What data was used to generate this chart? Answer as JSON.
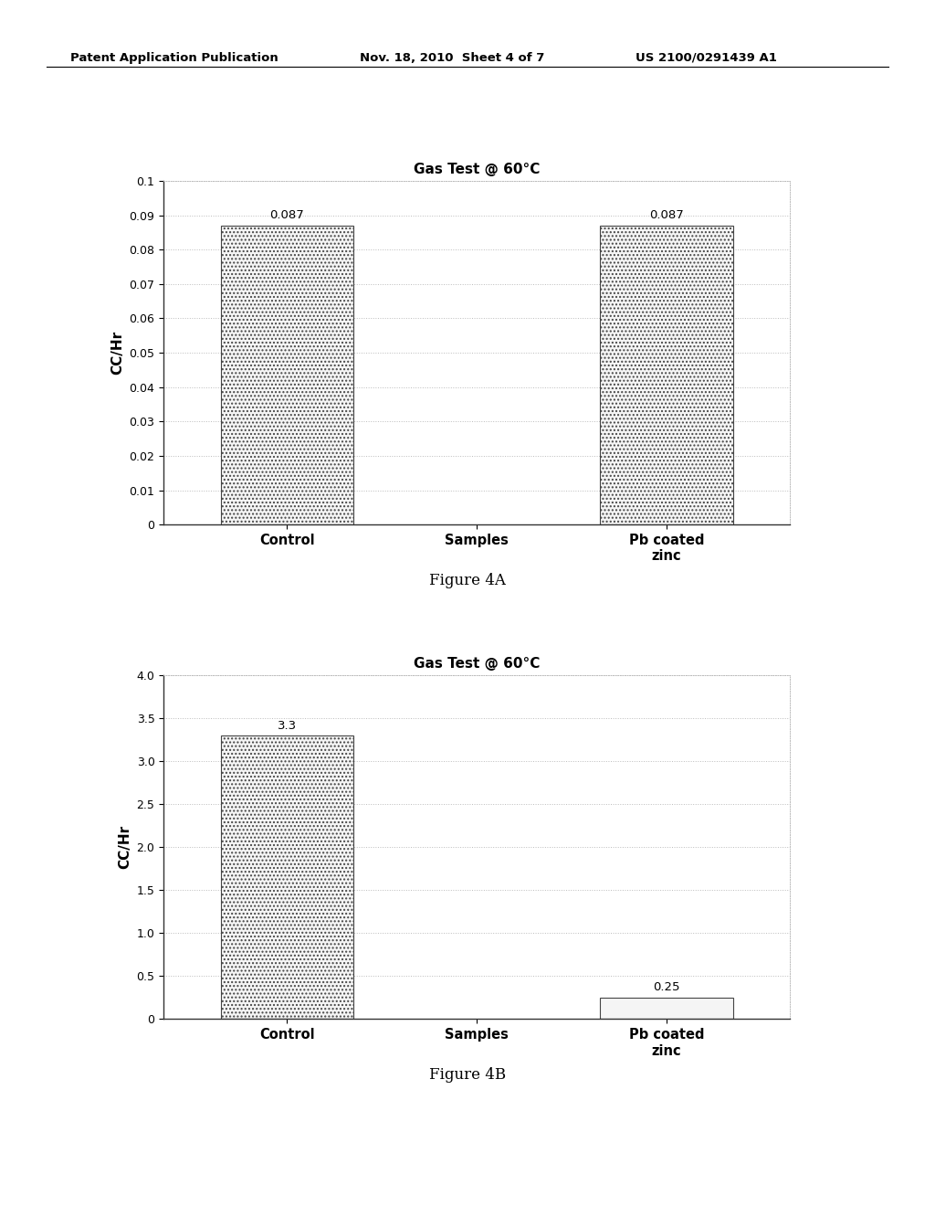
{
  "fig_width": 10.24,
  "fig_height": 13.2,
  "bg_color": "#ffffff",
  "header_left": "Patent Application Publication",
  "header_center": "Nov. 18, 2010  Sheet 4 of 7",
  "header_right": "US 2100/0291439 A1",
  "chart_a": {
    "title": "Gas Test @ 60°C",
    "ylabel": "CC/Hr",
    "categories": [
      "Control",
      "Samples",
      "Pb coated\nzinc"
    ],
    "bar_positions": [
      0,
      2
    ],
    "bar_values": [
      0.087,
      0.087
    ],
    "bar_labels": [
      "0.087",
      "0.087"
    ],
    "bar_hatches": [
      "....",
      "...."
    ],
    "ylim": [
      0,
      0.1
    ],
    "yticks": [
      0,
      0.01,
      0.02,
      0.03,
      0.04,
      0.05,
      0.06,
      0.07,
      0.08,
      0.09,
      0.1
    ],
    "ytick_labels": [
      "0",
      "0.01",
      "0.02",
      "0.03",
      "0.04",
      "0.05",
      "0.06",
      "0.07",
      "0.08",
      "0.09",
      "0.1"
    ],
    "figure_label": "Figure 4A",
    "bar_color": "#f5f5f5",
    "bar_edge_color": "#444444",
    "bar_width": 0.7,
    "grid_color": "#bbbbbb",
    "grid_style": ":"
  },
  "chart_b": {
    "title": "Gas Test @ 60°C",
    "ylabel": "CC/Hr",
    "categories": [
      "Control",
      "Samples",
      "Pb coated\nzinc"
    ],
    "bar_positions": [
      0,
      2
    ],
    "bar_values": [
      3.3,
      0.25
    ],
    "bar_labels": [
      "3.3",
      "0.25"
    ],
    "bar_hatches": [
      "....",
      ""
    ],
    "ylim": [
      0,
      4.0
    ],
    "yticks": [
      0,
      0.5,
      1.0,
      1.5,
      2.0,
      2.5,
      3.0,
      3.5,
      4.0
    ],
    "ytick_labels": [
      "0",
      "0.5",
      "1.0",
      "1.5",
      "2.0",
      "2.5",
      "3.0",
      "3.5",
      "4.0"
    ],
    "figure_label": "Figure 4B",
    "bar_color": "#f5f5f5",
    "bar_edge_color": "#444444",
    "bar_width": 0.7,
    "grid_color": "#bbbbbb",
    "grid_style": ":"
  }
}
